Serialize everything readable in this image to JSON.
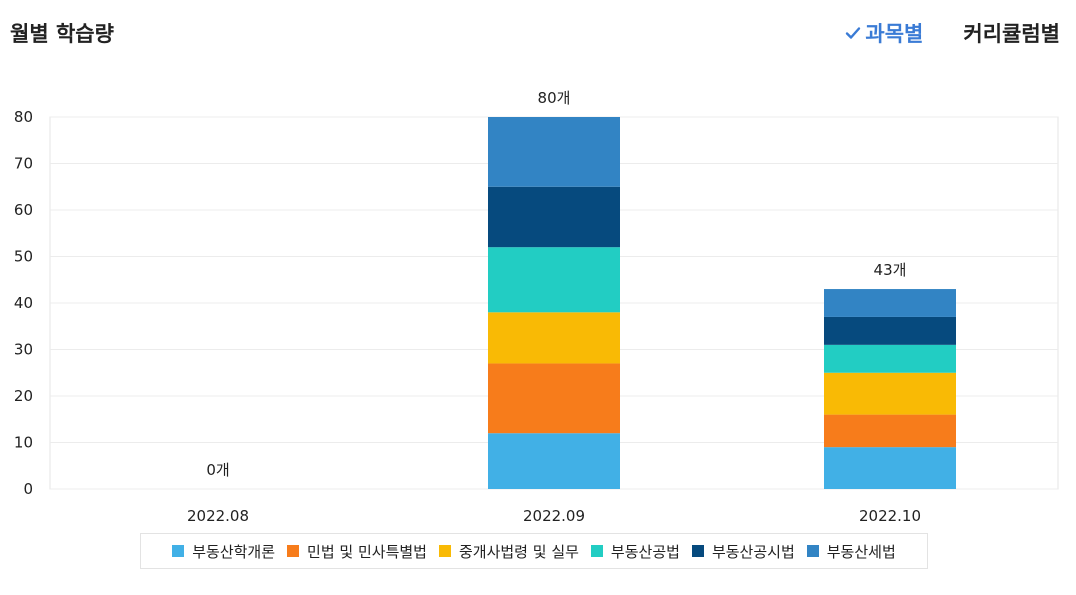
{
  "header": {
    "title": "월별 학습량",
    "tabs": [
      {
        "label": "과목별",
        "active": true
      },
      {
        "label": "커리큘럼별",
        "active": false
      }
    ]
  },
  "chart_data": {
    "type": "bar",
    "stacked": true,
    "categories": [
      "2022.08",
      "2022.09",
      "2022.10"
    ],
    "totals_labels": [
      "0개",
      "80개",
      "43개"
    ],
    "ylim": [
      0,
      80
    ],
    "yticks": [
      0,
      10,
      20,
      30,
      40,
      50,
      60,
      70,
      80
    ],
    "grid": true,
    "legend_position": "bottom",
    "series": [
      {
        "name": "부동산학개론",
        "color": "#41b0e6",
        "values": [
          0,
          12,
          9
        ]
      },
      {
        "name": "민법 및 민사특별법",
        "color": "#f77c1b",
        "values": [
          0,
          15,
          7
        ]
      },
      {
        "name": "중개사법령 및 실무",
        "color": "#f9ba05",
        "values": [
          0,
          11,
          9
        ]
      },
      {
        "name": "부동산공법",
        "color": "#22cdc3",
        "values": [
          0,
          14,
          6
        ]
      },
      {
        "name": "부동산공시법",
        "color": "#064a7e",
        "values": [
          0,
          13,
          6
        ]
      },
      {
        "name": "부동산세법",
        "color": "#3284c4",
        "values": [
          0,
          15,
          6
        ]
      }
    ]
  }
}
